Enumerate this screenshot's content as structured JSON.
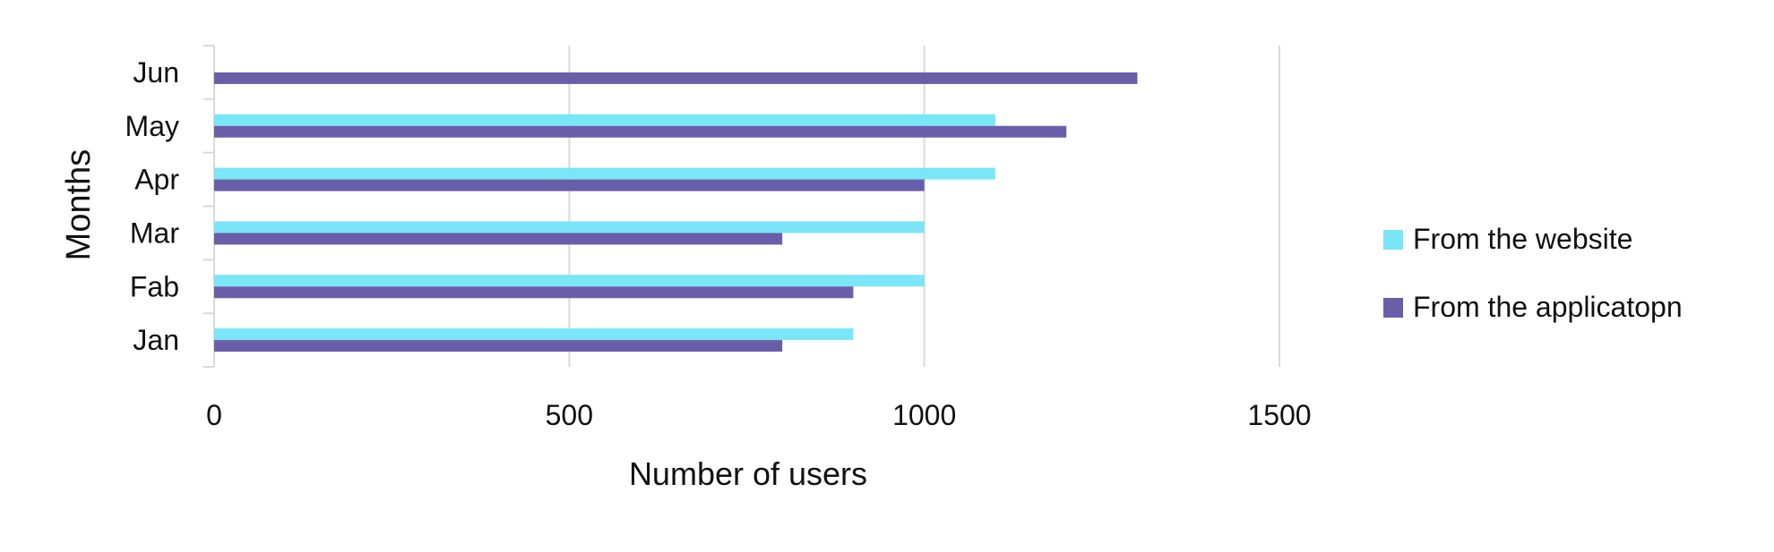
{
  "chart_data": {
    "type": "bar",
    "orientation": "horizontal",
    "title": "",
    "xlabel": "Number of users",
    "ylabel": "Months",
    "categories": [
      "Jan",
      "Fab",
      "Mar",
      "Apr",
      "May",
      "Jun"
    ],
    "xlim": [
      0,
      1500
    ],
    "xticks": [
      "0",
      "500",
      "1000",
      "1500"
    ],
    "grid": true,
    "legend_position": "right",
    "series": [
      {
        "name": "From the website",
        "color": "#7ae6f8",
        "values": [
          900,
          1000,
          1000,
          1100,
          1100,
          0
        ]
      },
      {
        "name": "From the applicatopn",
        "color": "#6b5ea8",
        "values": [
          800,
          900,
          800,
          1000,
          1200,
          1300
        ]
      }
    ]
  }
}
